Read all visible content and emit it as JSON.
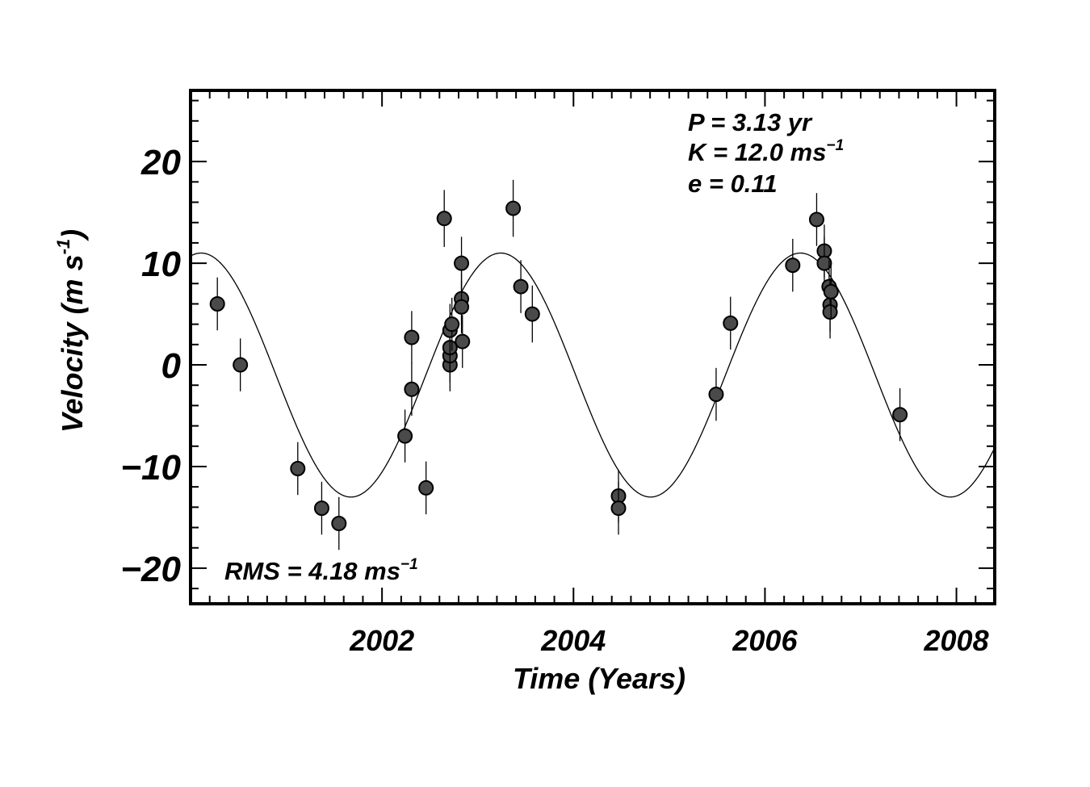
{
  "chart_data": {
    "type": "scatter",
    "title": "",
    "xlabel": "Time  (Years)",
    "ylabel": "Velocity  (m s",
    "ylabel_sup": "-1",
    "ylabel_close": ")",
    "xlim": [
      2000.0,
      2008.4
    ],
    "ylim": [
      -23.5,
      27.0
    ],
    "x_ticks": [
      2002,
      2004,
      2006,
      2008
    ],
    "x_tick_labels": [
      "2002",
      "2004",
      "2006",
      "2008"
    ],
    "y_ticks": [
      -20,
      -10,
      0,
      10,
      20
    ],
    "y_tick_labels": [
      "−20",
      "−10",
      "0",
      "10",
      "20"
    ],
    "grid": false,
    "annotations": {
      "period": "P = 3.13 yr",
      "amplitude": "K = 12.0 ms",
      "amplitude_sup": "−1",
      "eccentricity": "e = 0.11",
      "rms": "RMS = 4.18 ms",
      "rms_sup": "−1"
    },
    "model": {
      "period": 3.13,
      "amplitude": 12.0,
      "offset": -1.0,
      "phase_peak_year": 2003.24
    },
    "series": [
      {
        "points": [
          {
            "x": 2000.28,
            "y": 6.0,
            "err": 2.6
          },
          {
            "x": 2000.52,
            "y": 0.0,
            "err": 2.6
          },
          {
            "x": 2001.12,
            "y": -10.2,
            "err": 2.6
          },
          {
            "x": 2001.37,
            "y": -14.1,
            "err": 2.6
          },
          {
            "x": 2001.55,
            "y": -15.6,
            "err": 2.6
          },
          {
            "x": 2002.24,
            "y": -7.0,
            "err": 2.6
          },
          {
            "x": 2002.31,
            "y": 2.7,
            "err": 2.6
          },
          {
            "x": 2002.31,
            "y": -2.4,
            "err": 2.6
          },
          {
            "x": 2002.46,
            "y": -12.1,
            "err": 2.6
          },
          {
            "x": 2002.65,
            "y": 14.4,
            "err": 2.8
          },
          {
            "x": 2002.71,
            "y": 0.0,
            "err": 2.6
          },
          {
            "x": 2002.71,
            "y": 0.9,
            "err": 2.6
          },
          {
            "x": 2002.71,
            "y": 1.7,
            "err": 2.6
          },
          {
            "x": 2002.71,
            "y": 3.4,
            "err": 2.6
          },
          {
            "x": 2002.73,
            "y": 4.0,
            "err": 2.6
          },
          {
            "x": 2002.83,
            "y": 10.0,
            "err": 2.6
          },
          {
            "x": 2002.83,
            "y": 6.5,
            "err": 2.6
          },
          {
            "x": 2002.83,
            "y": 5.7,
            "err": 2.6
          },
          {
            "x": 2002.84,
            "y": 2.3,
            "err": 2.6
          },
          {
            "x": 2003.37,
            "y": 15.4,
            "err": 2.8
          },
          {
            "x": 2003.45,
            "y": 7.7,
            "err": 2.6
          },
          {
            "x": 2003.57,
            "y": 5.0,
            "err": 2.8
          },
          {
            "x": 2004.47,
            "y": -12.9,
            "err": 2.6
          },
          {
            "x": 2004.47,
            "y": -14.1,
            "err": 2.6
          },
          {
            "x": 2005.49,
            "y": -2.9,
            "err": 2.6
          },
          {
            "x": 2005.64,
            "y": 4.1,
            "err": 2.6
          },
          {
            "x": 2006.29,
            "y": 9.8,
            "err": 2.6
          },
          {
            "x": 2006.54,
            "y": 14.3,
            "err": 2.6
          },
          {
            "x": 2006.62,
            "y": 11.2,
            "err": 2.6
          },
          {
            "x": 2006.62,
            "y": 10.0,
            "err": 2.6
          },
          {
            "x": 2006.67,
            "y": 7.7,
            "err": 2.6
          },
          {
            "x": 2006.68,
            "y": 5.9,
            "err": 2.6
          },
          {
            "x": 2006.68,
            "y": 5.2,
            "err": 2.6
          },
          {
            "x": 2006.69,
            "y": 7.2,
            "err": 2.6
          },
          {
            "x": 2007.41,
            "y": -4.9,
            "err": 2.6
          }
        ]
      }
    ],
    "colors": {
      "marker_fill": "#4a4a4a",
      "marker_edge": "#000000",
      "curve": "#000000",
      "axes": "#000000"
    }
  }
}
